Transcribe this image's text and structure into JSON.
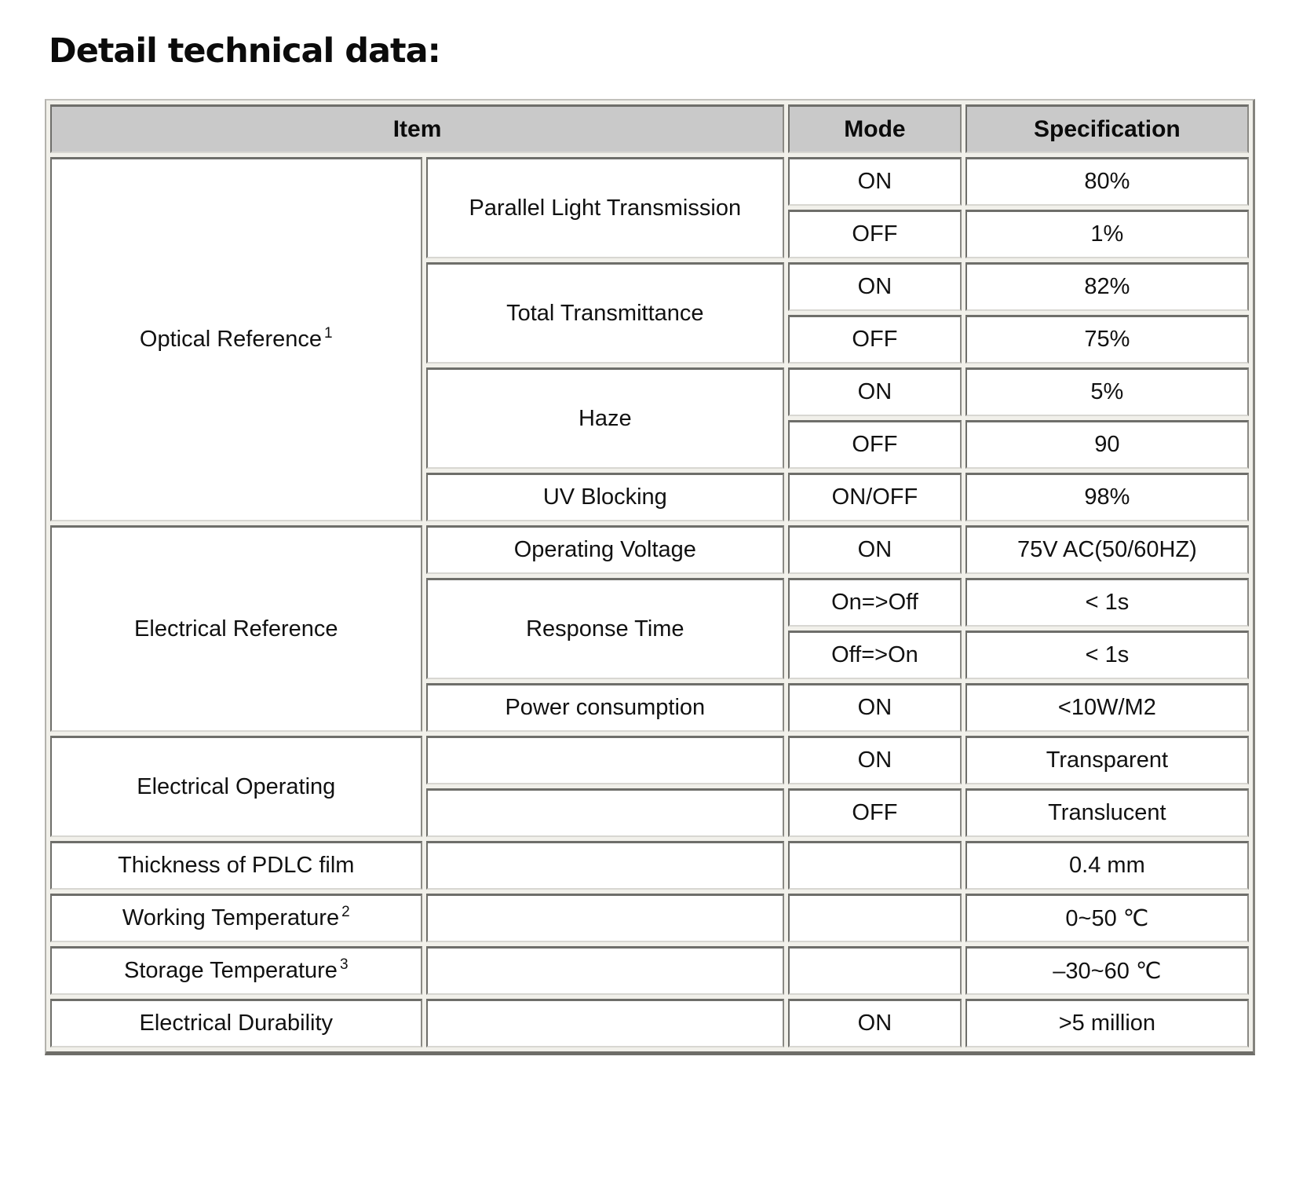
{
  "title": "Detail technical data:",
  "colors": {
    "header_bg": "#c9c9c9",
    "cell_border_dark": "#6e6e6a",
    "cell_border_light": "#d8d7d2",
    "gap_background": "#f1f0ea"
  },
  "table": {
    "headers": {
      "item": "Item",
      "mode": "Mode",
      "specification": "Specification"
    },
    "sections": [
      {
        "group": "Optical Reference",
        "group_sup": "1",
        "items": [
          {
            "label": "Parallel Light Transmission",
            "entries": [
              {
                "mode": "ON",
                "spec": "80%"
              },
              {
                "mode": "OFF",
                "spec": "1%"
              }
            ]
          },
          {
            "label": "Total Transmittance",
            "entries": [
              {
                "mode": "ON",
                "spec": "82%"
              },
              {
                "mode": "OFF",
                "spec": "75%"
              }
            ]
          },
          {
            "label": "Haze",
            "entries": [
              {
                "mode": "ON",
                "spec": "5%"
              },
              {
                "mode": "OFF",
                "spec": "90"
              }
            ]
          },
          {
            "label": "UV Blocking",
            "entries": [
              {
                "mode": "ON/OFF",
                "spec": "98%"
              }
            ]
          }
        ]
      },
      {
        "group": "Electrical Reference",
        "group_sup": "",
        "items": [
          {
            "label": "Operating Voltage",
            "entries": [
              {
                "mode": "ON",
                "spec": "75V AC(50/60HZ)"
              }
            ]
          },
          {
            "label": "Response Time",
            "entries": [
              {
                "mode": "On=>Off",
                "spec": "< 1s"
              },
              {
                "mode": "Off=>On",
                "spec": "< 1s"
              }
            ]
          },
          {
            "label": "Power consumption",
            "entries": [
              {
                "mode": "ON",
                "spec": "<10W/M2"
              }
            ]
          }
        ]
      },
      {
        "group": "Electrical Operating",
        "group_sup": "",
        "items": [
          {
            "label": "",
            "entries": [
              {
                "mode": "ON",
                "spec": "Transparent"
              }
            ]
          },
          {
            "label": "",
            "entries": [
              {
                "mode": "OFF",
                "spec": "Translucent"
              }
            ]
          }
        ]
      },
      {
        "group": "Thickness of PDLC film",
        "group_sup": "",
        "items": [
          {
            "label": "",
            "entries": [
              {
                "mode": "",
                "spec": "0.4 mm"
              }
            ]
          }
        ]
      },
      {
        "group": "Working Temperature",
        "group_sup": "2",
        "items": [
          {
            "label": "",
            "entries": [
              {
                "mode": "",
                "spec": "0~50 ℃"
              }
            ]
          }
        ]
      },
      {
        "group": "Storage Temperature",
        "group_sup": "3",
        "items": [
          {
            "label": "",
            "entries": [
              {
                "mode": "",
                "spec": "–30~60 ℃"
              }
            ]
          }
        ]
      },
      {
        "group": "Electrical Durability",
        "group_sup": "",
        "items": [
          {
            "label": "",
            "entries": [
              {
                "mode": "ON",
                "spec": ">5 million"
              }
            ]
          }
        ]
      }
    ]
  }
}
